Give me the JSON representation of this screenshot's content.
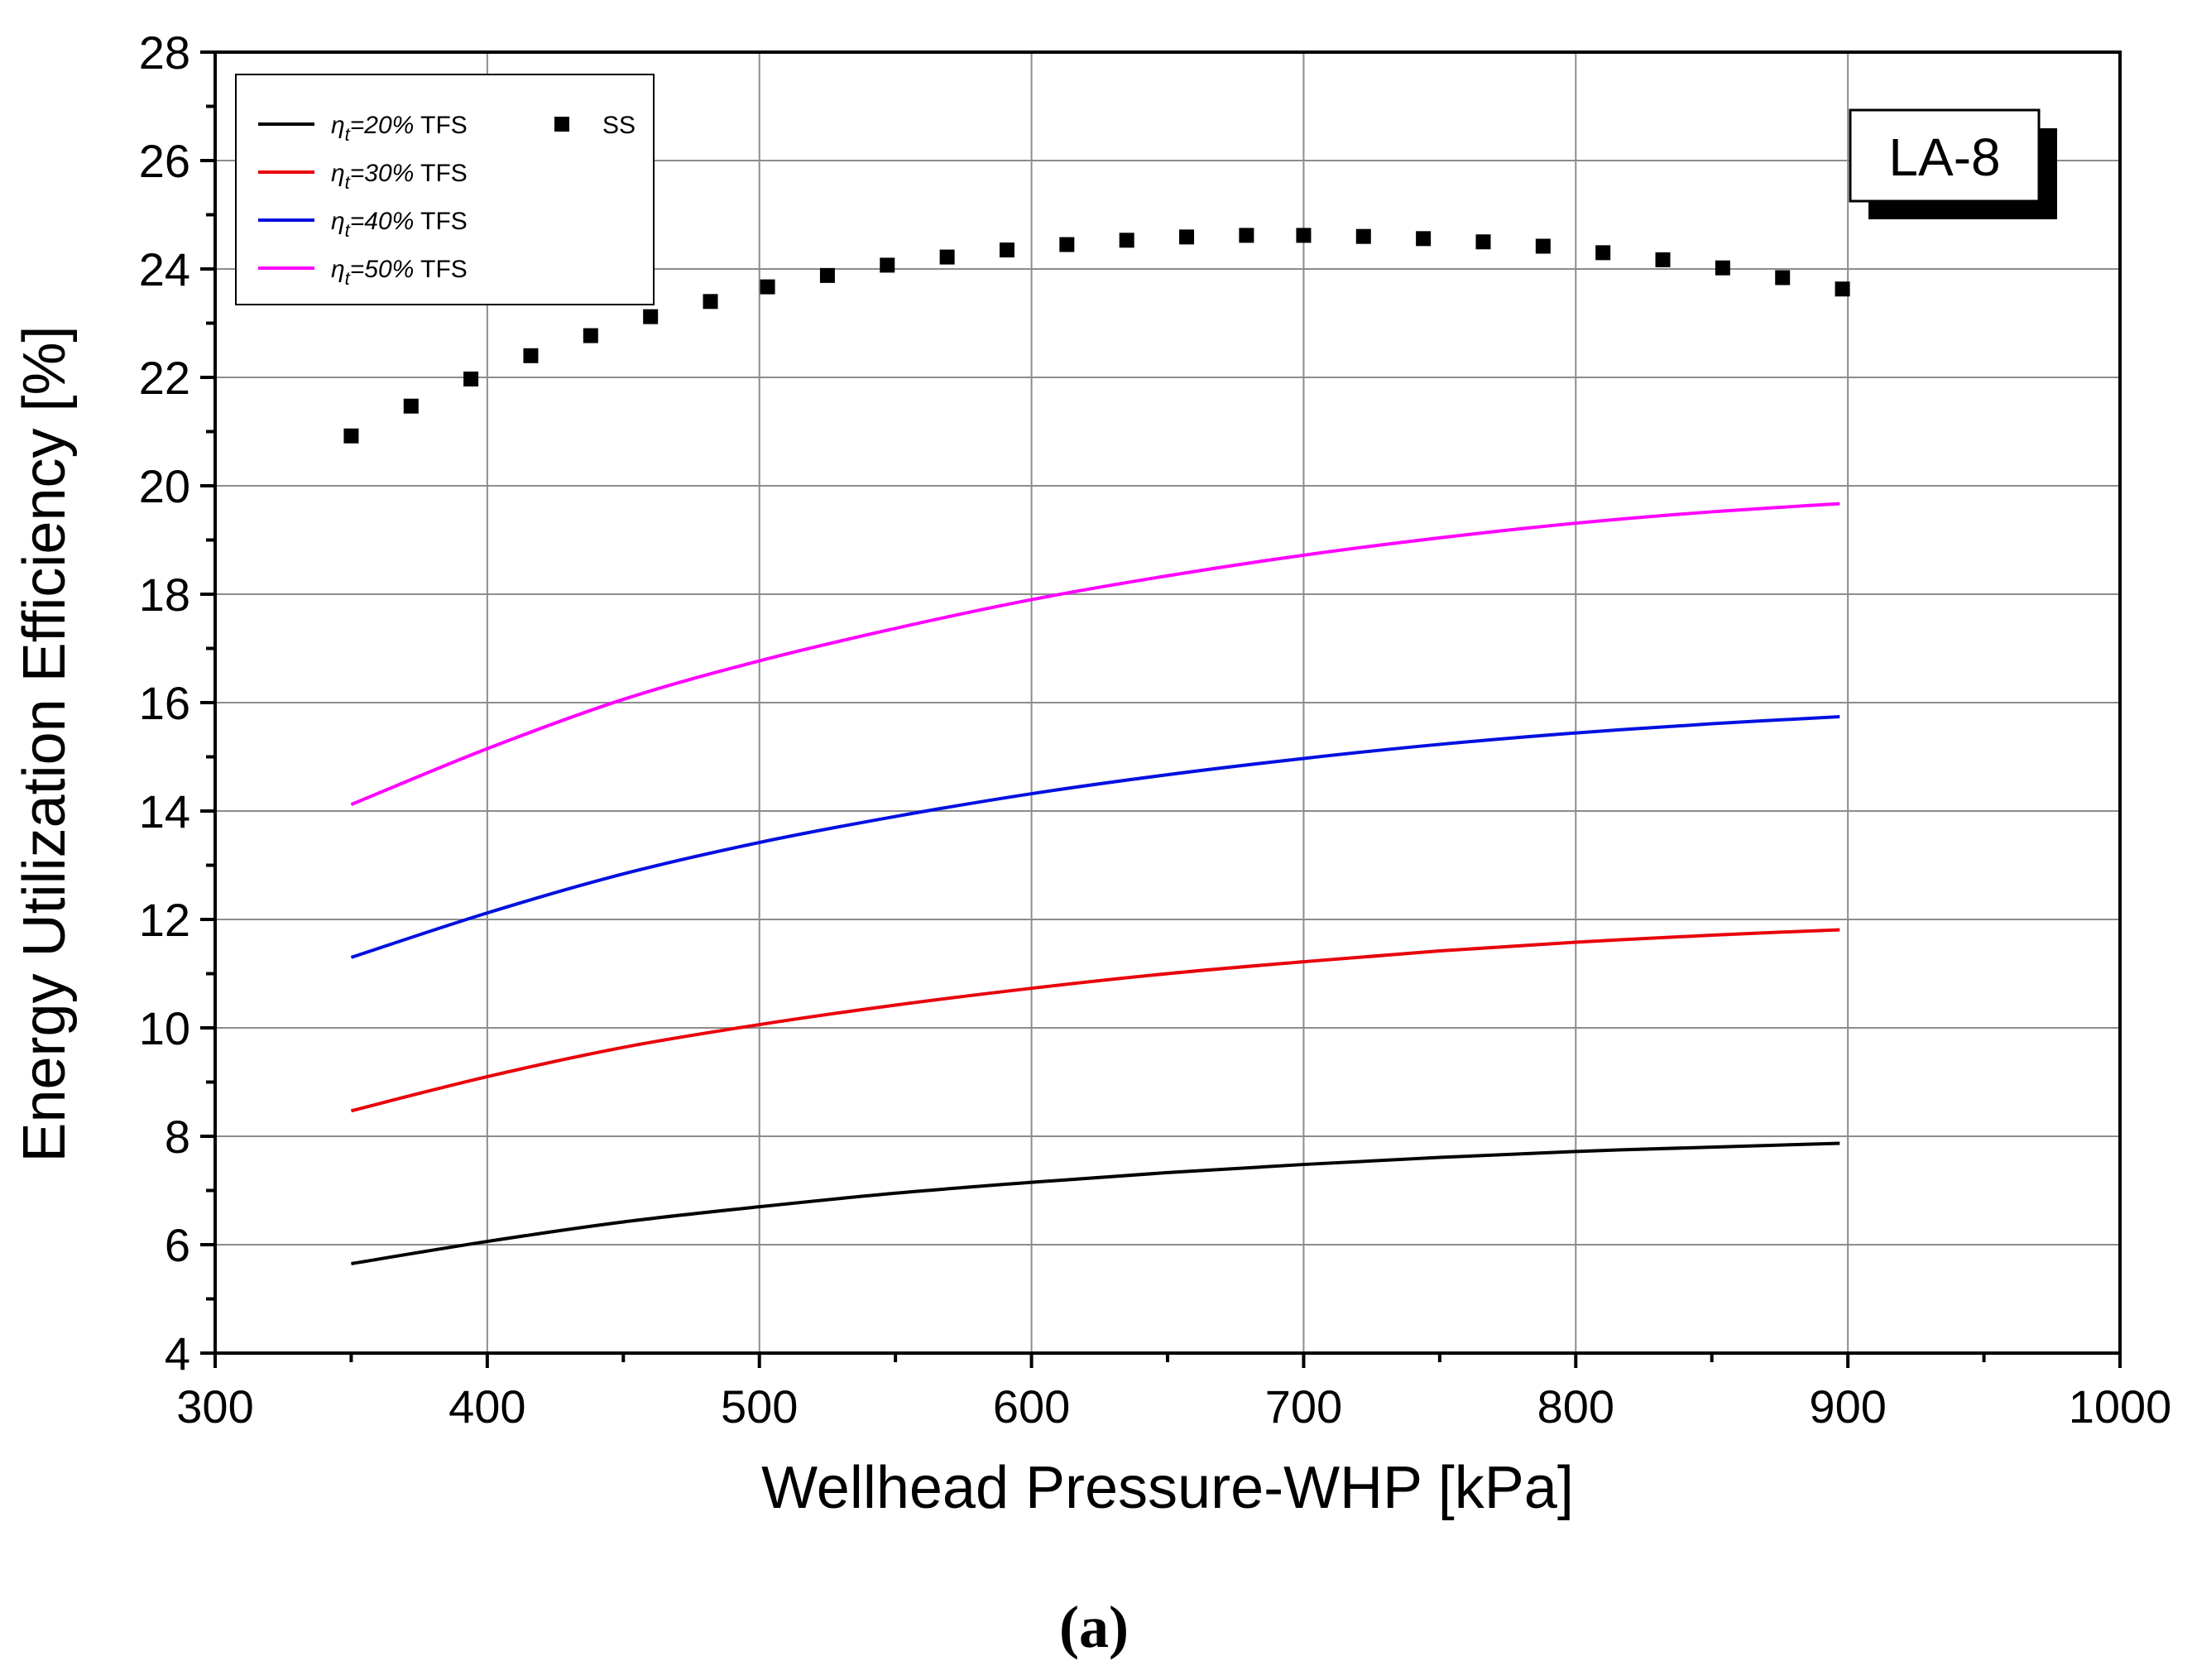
{
  "chart_data": {
    "type": "line",
    "xlabel": "Wellhead Pressure-WHP [kPa]",
    "ylabel": "Energy Utilization Efficiency [%]",
    "xlim": [
      300,
      1000
    ],
    "ylim": [
      4,
      28
    ],
    "xticks": [
      "300",
      "400",
      "500",
      "600",
      "700",
      "800",
      "900",
      "1000"
    ],
    "yticks": [
      "4",
      "6",
      "8",
      "10",
      "12",
      "14",
      "16",
      "18",
      "20",
      "22",
      "24",
      "26",
      "28"
    ],
    "grid": true,
    "legend_position": "top-left",
    "badge": "LA-8",
    "caption": "(a)",
    "series": [
      {
        "name": "η_t=20% TFS",
        "symbol": "η",
        "subscript": "t",
        "label_rest": "=20%",
        "suffix": " TFS",
        "color": "#000000",
        "style": "line",
        "x": [
          350,
          400,
          450,
          500,
          550,
          600,
          650,
          700,
          750,
          800,
          850,
          897
        ],
        "y": [
          5.65,
          6.06,
          6.42,
          6.7,
          6.95,
          7.15,
          7.33,
          7.48,
          7.61,
          7.72,
          7.8,
          7.87
        ]
      },
      {
        "name": "η_t=30% TFS",
        "symbol": "η",
        "subscript": "t",
        "label_rest": "=30%",
        "suffix": " TFS",
        "color": "#e8000b",
        "style": "line",
        "x": [
          350,
          400,
          450,
          500,
          550,
          600,
          650,
          700,
          750,
          800,
          850,
          897
        ],
        "y": [
          8.47,
          9.1,
          9.64,
          10.06,
          10.42,
          10.73,
          11.0,
          11.22,
          11.42,
          11.58,
          11.71,
          11.81
        ]
      },
      {
        "name": "η_t=40% TFS",
        "symbol": "η",
        "subscript": "t",
        "label_rest": "=40%",
        "suffix": " TFS",
        "color": "#0010e0",
        "style": "line",
        "x": [
          350,
          400,
          450,
          500,
          550,
          600,
          650,
          700,
          750,
          800,
          850,
          897
        ],
        "y": [
          11.3,
          12.12,
          12.84,
          13.42,
          13.9,
          14.32,
          14.67,
          14.97,
          15.23,
          15.44,
          15.61,
          15.74
        ]
      },
      {
        "name": "η_t=50% TFS",
        "symbol": "η",
        "subscript": "t",
        "label_rest": "=50%",
        "suffix": " TFS",
        "color": "#ff00ff",
        "style": "line",
        "x": [
          350,
          400,
          450,
          500,
          550,
          600,
          650,
          700,
          750,
          800,
          850,
          897
        ],
        "y": [
          14.12,
          15.15,
          16.06,
          16.77,
          17.37,
          17.9,
          18.34,
          18.72,
          19.04,
          19.31,
          19.52,
          19.67
        ]
      },
      {
        "name": "SS",
        "symbol": "",
        "subscript": "",
        "label_rest": "SS",
        "suffix": "",
        "color": "#000000",
        "style": "marker",
        "x": [
          350,
          372,
          394,
          416,
          438,
          460,
          482,
          503,
          525,
          547,
          569,
          591,
          613,
          635,
          657,
          679,
          700,
          722,
          744,
          766,
          788,
          810,
          832,
          854,
          876,
          898
        ],
        "y": [
          20.92,
          21.47,
          21.97,
          22.4,
          22.77,
          23.12,
          23.4,
          23.67,
          23.88,
          24.07,
          24.22,
          24.35,
          24.45,
          24.53,
          24.59,
          24.62,
          24.62,
          24.6,
          24.56,
          24.5,
          24.42,
          24.3,
          24.17,
          24.02,
          23.84,
          23.63
        ]
      }
    ]
  }
}
